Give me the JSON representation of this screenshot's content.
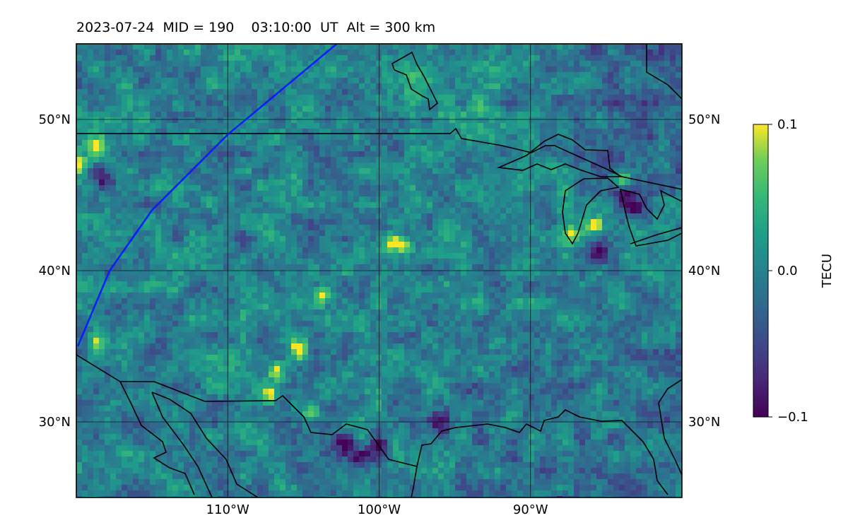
{
  "title": "2023-07-24  MID = 190    03:10:00  UT  Alt = 300 km",
  "map": {
    "projection": "lat-lon",
    "lon_range": [
      -120,
      -80
    ],
    "lat_range": [
      25,
      55
    ],
    "gridlines": true,
    "lat_ticks": [
      {
        "value": 50,
        "label": "50°N"
      },
      {
        "value": 40,
        "label": "40°N"
      },
      {
        "value": 30,
        "label": "30°N"
      }
    ],
    "lon_ticks": [
      {
        "value": -110,
        "label": "110°W"
      },
      {
        "value": -100,
        "label": "100°W"
      },
      {
        "value": -90,
        "label": "90°W"
      }
    ],
    "satellite_track": {
      "color": "#0a1ff5",
      "points": [
        [
          -119.9,
          35.0
        ],
        [
          -117.8,
          40.0
        ],
        [
          -115.0,
          44.0
        ],
        [
          -110.0,
          49.0
        ],
        [
          -102.8,
          55.0
        ]
      ]
    },
    "field": {
      "quantity": "TECU",
      "colormap": "viridis",
      "vmin": -0.1,
      "vmax": 0.1,
      "hotspots_positive": [
        [
          -118.6,
          35.4
        ],
        [
          -106.8,
          33.3
        ],
        [
          -107.2,
          31.8
        ],
        [
          -104.5,
          30.6
        ],
        [
          -105.2,
          34.8
        ],
        [
          -103.8,
          38.3
        ],
        [
          -99.2,
          41.8
        ],
        [
          -98.4,
          41.8
        ],
        [
          -87.5,
          42.3
        ],
        [
          -85.7,
          43.0
        ],
        [
          -118.6,
          48.2
        ],
        [
          -120.0,
          47.0
        ],
        [
          -84.0,
          46.0
        ]
      ],
      "hotspots_negative": [
        [
          -100.0,
          28.5
        ],
        [
          -101.2,
          27.5
        ],
        [
          -83.3,
          44.2
        ],
        [
          -84.2,
          45.0
        ],
        [
          -85.5,
          41.2
        ],
        [
          -108.9,
          42.0
        ],
        [
          -118.3,
          46.2
        ],
        [
          -88.0,
          24.3
        ],
        [
          -96.0,
          30.0
        ],
        [
          -102.2,
          28.5
        ]
      ]
    }
  },
  "colorbar": {
    "label": "TECU",
    "ticks": [
      {
        "value": 0.1,
        "label": "0.1"
      },
      {
        "value": 0.0,
        "label": "0.0"
      },
      {
        "value": -0.1,
        "label": "−0.1"
      }
    ]
  }
}
